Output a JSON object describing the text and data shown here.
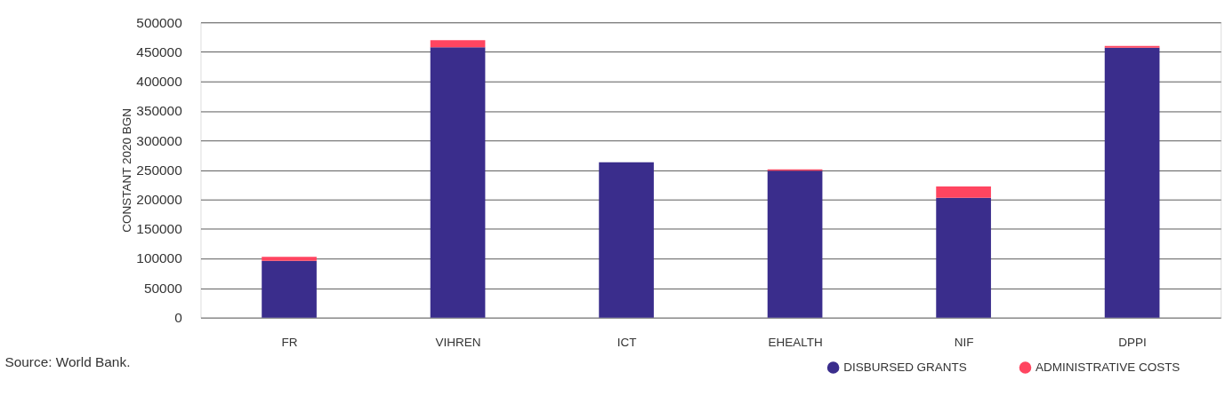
{
  "chart_data": {
    "type": "bar",
    "stacked": true,
    "ylabel": "CONSTANT 2020 BGN",
    "categories": [
      "FR",
      "VIHREN",
      "ICT",
      "EHEALTH",
      "NIF",
      "DPPI"
    ],
    "series": [
      {
        "name": "DISBURSED GRANTS",
        "color": "#3a2d8c",
        "values": [
          96000,
          458000,
          263000,
          249000,
          203000,
          457000
        ]
      },
      {
        "name": "ADMINISTRATIVE COSTS",
        "color": "#ff4560",
        "values": [
          7000,
          12000,
          0,
          2000,
          19000,
          3000
        ]
      }
    ],
    "ylim": [
      0,
      500000
    ],
    "yticks": [
      0,
      50000,
      100000,
      150000,
      200000,
      250000,
      300000,
      350000,
      400000,
      450000,
      500000
    ],
    "grid": "y",
    "legend": "bottom right",
    "marker": "circle",
    "annotations": [
      "Source: World Bank."
    ]
  }
}
